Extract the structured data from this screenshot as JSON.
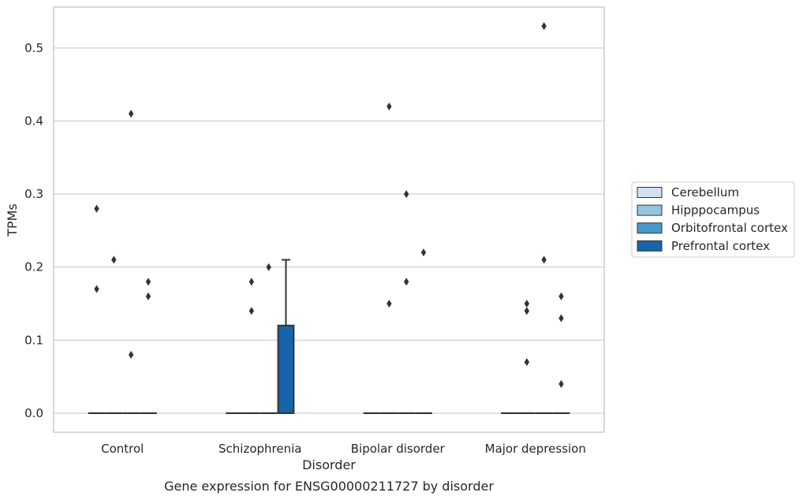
{
  "chart_data": {
    "type": "box",
    "title": "Gene expression for ENSG00000211727 by disorder",
    "xlabel": "Disorder",
    "ylabel": "TPMs",
    "ylim": [
      -0.026,
      0.556
    ],
    "yticks": [
      0.0,
      0.1,
      0.2,
      0.3,
      0.4,
      0.5
    ],
    "ytick_labels": [
      "0.0",
      "0.1",
      "0.2",
      "0.3",
      "0.4",
      "0.5"
    ],
    "grid": "horizontal",
    "legend_position": "right",
    "categories": [
      "Control",
      "Schizophrenia",
      "Bipolar disorder",
      "Major depression"
    ],
    "series": [
      {
        "name": "Cerebellum",
        "color": "#d0e1f2",
        "boxes": [
          {
            "q1": 0,
            "median": 0,
            "q3": 0,
            "whisker_low": 0,
            "whisker_high": 0,
            "outliers": [
              0.28,
              0.17
            ]
          },
          {
            "q1": 0,
            "median": 0,
            "q3": 0,
            "whisker_low": 0,
            "whisker_high": 0,
            "outliers": []
          },
          {
            "q1": 0,
            "median": 0,
            "q3": 0,
            "whisker_low": 0,
            "whisker_high": 0,
            "outliers": []
          },
          {
            "q1": 0,
            "median": 0,
            "q3": 0,
            "whisker_low": 0,
            "whisker_high": 0,
            "outliers": []
          }
        ]
      },
      {
        "name": "Hipppocampus",
        "color": "#94c4df",
        "boxes": [
          {
            "q1": 0,
            "median": 0,
            "q3": 0,
            "whisker_low": 0,
            "whisker_high": 0,
            "outliers": [
              0.21
            ]
          },
          {
            "q1": 0,
            "median": 0,
            "q3": 0,
            "whisker_low": 0,
            "whisker_high": 0,
            "outliers": [
              0.18,
              0.14
            ]
          },
          {
            "q1": 0,
            "median": 0,
            "q3": 0,
            "whisker_low": 0,
            "whisker_high": 0,
            "outliers": [
              0.42,
              0.15
            ]
          },
          {
            "q1": 0,
            "median": 0,
            "q3": 0,
            "whisker_low": 0,
            "whisker_high": 0,
            "outliers": [
              0.15,
              0.14,
              0.07
            ]
          }
        ]
      },
      {
        "name": "Orbitofrontal cortex",
        "color": "#4a98c9",
        "boxes": [
          {
            "q1": 0,
            "median": 0,
            "q3": 0,
            "whisker_low": 0,
            "whisker_high": 0,
            "outliers": [
              0.41,
              0.08
            ]
          },
          {
            "q1": 0,
            "median": 0,
            "q3": 0,
            "whisker_low": 0,
            "whisker_high": 0,
            "outliers": [
              0.2
            ]
          },
          {
            "q1": 0,
            "median": 0,
            "q3": 0,
            "whisker_low": 0,
            "whisker_high": 0,
            "outliers": [
              0.3,
              0.18
            ]
          },
          {
            "q1": 0,
            "median": 0,
            "q3": 0,
            "whisker_low": 0,
            "whisker_high": 0,
            "outliers": [
              0.53,
              0.21
            ]
          }
        ]
      },
      {
        "name": "Prefrontal cortex",
        "color": "#1764ab",
        "boxes": [
          {
            "q1": 0,
            "median": 0,
            "q3": 0,
            "whisker_low": 0,
            "whisker_high": 0,
            "outliers": [
              0.18,
              0.16
            ]
          },
          {
            "q1": 0,
            "median": 0,
            "q3": 0.12,
            "whisker_low": 0,
            "whisker_high": 0.21,
            "outliers": []
          },
          {
            "q1": 0,
            "median": 0,
            "q3": 0,
            "whisker_low": 0,
            "whisker_high": 0,
            "outliers": [
              0.22
            ]
          },
          {
            "q1": 0,
            "median": 0,
            "q3": 0,
            "whisker_low": 0,
            "whisker_high": 0,
            "outliers": [
              0.16,
              0.13,
              0.04
            ]
          }
        ]
      }
    ]
  }
}
